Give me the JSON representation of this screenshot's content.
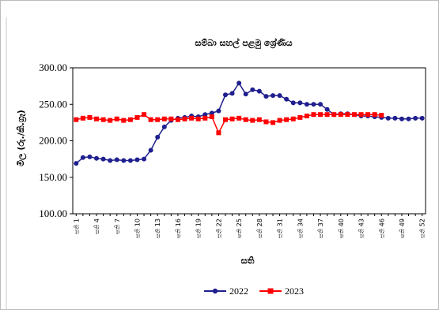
{
  "chart_data": {
    "type": "line",
    "title": "සම්බා සහල් පළමු ශ්‍රේණිය",
    "xlabel": "සති",
    "ylabel": "මිල (රු./කි.ග්‍රෑ)",
    "ylim": [
      100,
      300
    ],
    "yticks": [
      "100.00",
      "150.00",
      "200.00",
      "250.00",
      "300.00"
    ],
    "x": [
      1,
      2,
      3,
      4,
      5,
      6,
      7,
      8,
      9,
      10,
      11,
      12,
      13,
      14,
      15,
      16,
      17,
      18,
      19,
      20,
      21,
      22,
      23,
      24,
      25,
      26,
      27,
      28,
      29,
      30,
      31,
      32,
      33,
      34,
      35,
      36,
      37,
      38,
      39,
      40,
      41,
      42,
      43,
      44,
      45,
      46,
      47,
      48,
      49,
      50,
      51,
      52
    ],
    "xtick_labels": [
      "සති 1",
      "සති 4",
      "සති 7",
      "සති 10",
      "සති 13",
      "සති 16",
      "සති 19",
      "සති 22",
      "සති 25",
      "සති 28",
      "සති 31",
      "සති 34",
      "සති 37",
      "සති 40",
      "සති 43",
      "සති 46",
      "සති 49",
      "සති 52"
    ],
    "xtick_weeks": [
      1,
      4,
      7,
      10,
      13,
      16,
      19,
      22,
      25,
      28,
      31,
      34,
      37,
      40,
      43,
      46,
      49,
      52
    ],
    "grid": false,
    "legend_position": "bottom",
    "series": [
      {
        "name": "2022",
        "color": "#1f1f8f",
        "marker": "circle",
        "values": [
          169,
          177,
          178,
          176,
          175,
          173,
          174,
          173,
          173,
          174,
          175,
          187,
          205,
          219,
          228,
          231,
          232,
          234,
          233,
          236,
          238,
          241,
          263,
          265,
          279,
          264,
          270,
          268,
          261,
          262,
          262,
          257,
          252,
          252,
          250,
          250,
          250,
          243,
          236,
          237,
          237,
          236,
          234,
          234,
          233,
          232,
          231,
          231,
          230,
          230,
          231,
          231
        ]
      },
      {
        "name": "2023",
        "color": "#ff0000",
        "marker": "square",
        "values": [
          229,
          231,
          232,
          230,
          229,
          228,
          230,
          228,
          229,
          232,
          236,
          229,
          229,
          230,
          230,
          229,
          230,
          231,
          230,
          231,
          233,
          211,
          229,
          230,
          231,
          229,
          228,
          229,
          226,
          225,
          228,
          229,
          230,
          232,
          234,
          236,
          236,
          236,
          236,
          236,
          236,
          236,
          236,
          236,
          236,
          235,
          null,
          null,
          null,
          null,
          null,
          null
        ]
      }
    ]
  }
}
